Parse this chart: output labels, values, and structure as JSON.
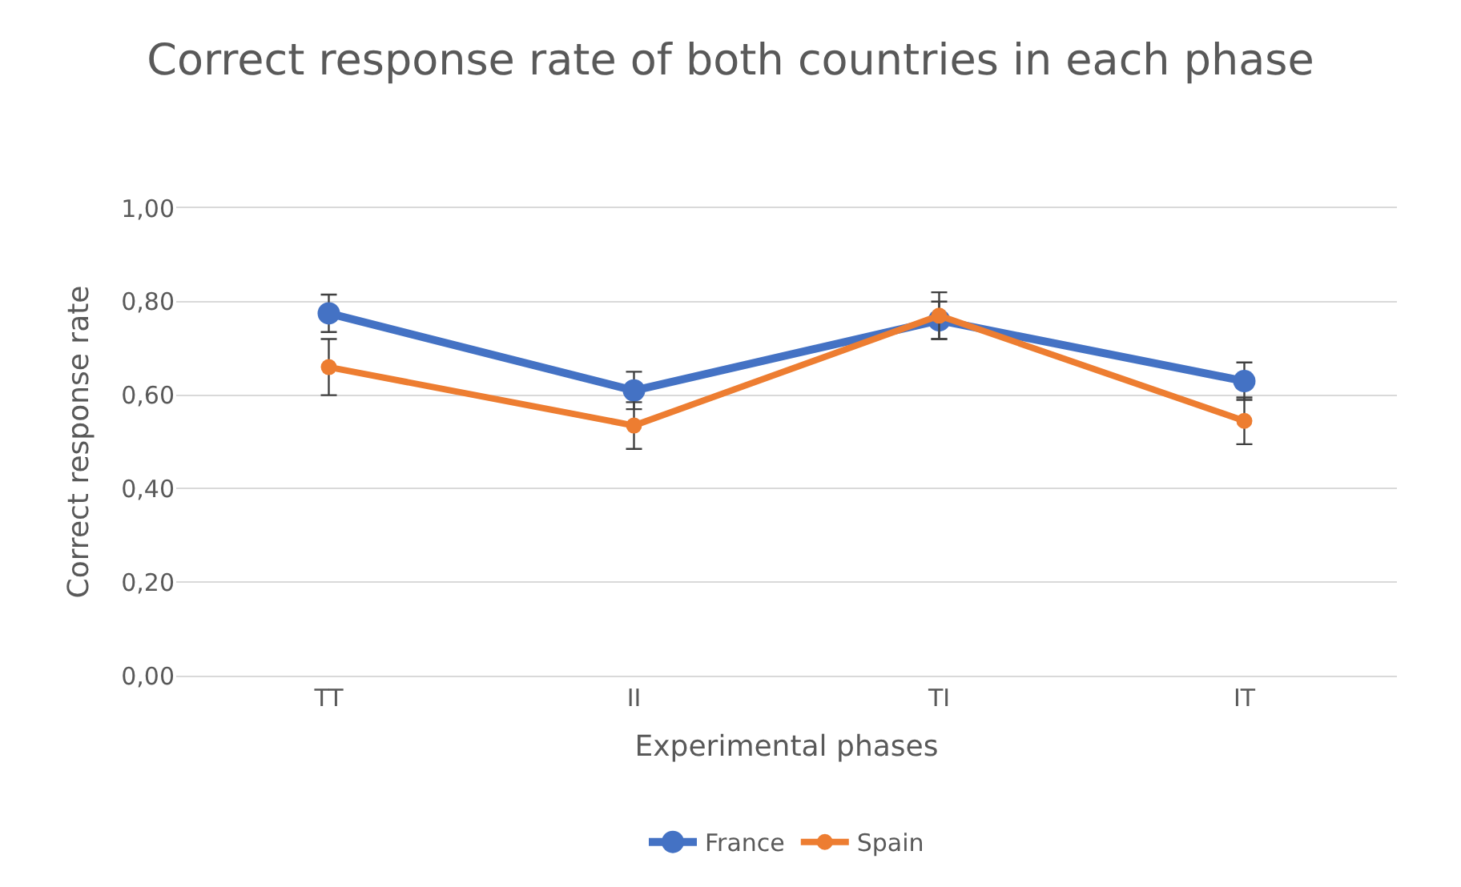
{
  "chart_data": {
    "type": "line",
    "title": "Correct response rate of both countries in each phase",
    "xlabel": "Experimental phases",
    "ylabel": "Correct response rate",
    "categories": [
      "TT",
      "II",
      "TI",
      "IT"
    ],
    "series": [
      {
        "name": "France",
        "color": "#4472c4",
        "values": [
          0.775,
          0.61,
          0.76,
          0.63
        ],
        "errors": [
          0.04,
          0.04,
          0.04,
          0.04
        ]
      },
      {
        "name": "Spain",
        "color": "#ed7d31",
        "values": [
          0.66,
          0.535,
          0.77,
          0.545
        ],
        "errors": [
          0.06,
          0.05,
          0.05,
          0.05
        ]
      }
    ],
    "ylim": [
      0,
      1
    ],
    "yticks": [
      {
        "value": 0,
        "label": "0,00"
      },
      {
        "value": 0.2,
        "label": "0,20"
      },
      {
        "value": 0.4,
        "label": "0,40"
      },
      {
        "value": 0.6,
        "label": "0,60"
      },
      {
        "value": 0.8,
        "label": "0,80"
      },
      {
        "value": 1,
        "label": "1,00"
      }
    ],
    "grid": "y",
    "legend": "bottom",
    "marker": "circle",
    "line_style": "solid"
  }
}
